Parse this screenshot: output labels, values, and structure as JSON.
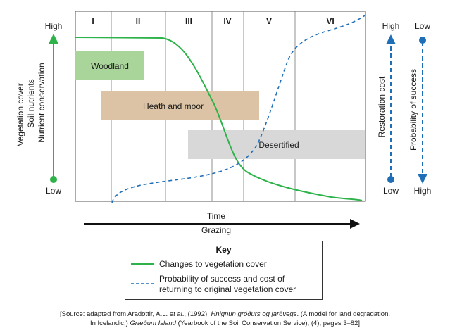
{
  "stages": [
    "I",
    "II",
    "III",
    "IV",
    "V",
    "VI"
  ],
  "left_axis": {
    "top": "High",
    "bottom": "Low",
    "labels": [
      "Vegetation cover",
      "Soil nutrients",
      "Nutrient conservation"
    ],
    "color": "#2db34a"
  },
  "right_axis_cost": {
    "top": "High",
    "bottom": "Low",
    "label": "Restoration cost",
    "color": "#1f6fb8"
  },
  "right_axis_prob": {
    "top": "Low",
    "bottom": "High",
    "label": "Probability of success",
    "color": "#1f6fb8"
  },
  "bands": {
    "woodland": {
      "label": "Woodland",
      "color": "#a9d59b"
    },
    "heath": {
      "label": "Heath and moor",
      "color": "#dcc3a5"
    },
    "desert": {
      "label": "Desertified",
      "color": "#d8d8d8"
    }
  },
  "bottom_axis": {
    "time": "Time",
    "grazing": "Grazing"
  },
  "key": {
    "title": "Key",
    "vegetation": "Changes to vegetation cover",
    "probability_1": "Probability of success and cost of",
    "probability_2": "returning to original vegetation cover"
  },
  "source": {
    "line1_a": "[Source: adapted from Aradottir, A.L. ",
    "line1_b": "et al",
    "line1_c": "., (1992), ",
    "line1_d": "Hnignun gróðurs og jarðvegs",
    "line1_e": ". (A model for land degradation.",
    "line2_a": "In Icelandic.) ",
    "line2_b": "Græðum Ísland",
    "line2_c": " (Yearbook of the Soil Conservation Service), (4), pages 3–82]"
  }
}
